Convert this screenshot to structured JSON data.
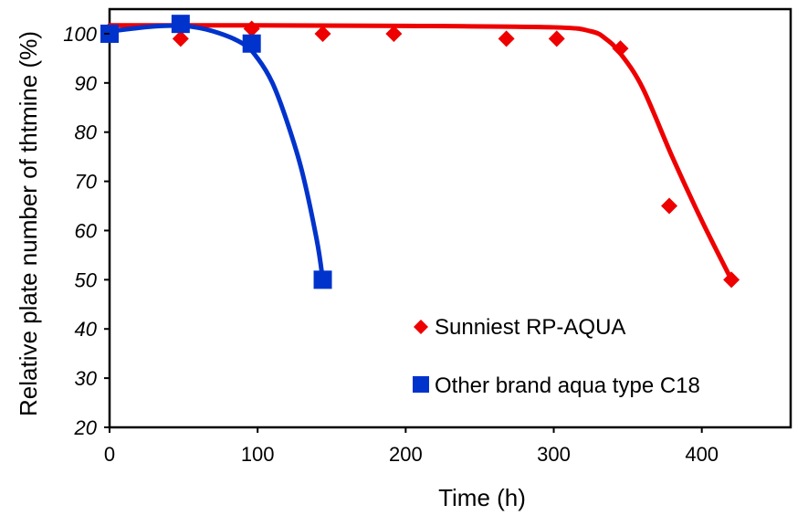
{
  "chart_data": {
    "type": "scatter",
    "title": "",
    "xlabel": "Time (h)",
    "ylabel": "Relative plate number of thtmine (%)",
    "xlim": [
      0,
      460
    ],
    "ylim": [
      20,
      105
    ],
    "xticks": [
      0,
      100,
      200,
      300,
      400
    ],
    "yticks": [
      20,
      30,
      40,
      50,
      60,
      70,
      80,
      90,
      100
    ],
    "grid": false,
    "legend_position": "bottom-right",
    "series": [
      {
        "name": "Sunniest RP-AQUA",
        "marker": "diamond",
        "color": "#ee0000",
        "x": [
          0,
          48,
          96,
          144,
          192,
          268,
          302,
          345,
          378,
          420
        ],
        "y": [
          100,
          99,
          101,
          100,
          100,
          99,
          99,
          97,
          65,
          50
        ],
        "trend_x": [
          0,
          100,
          200,
          300,
          325,
          335,
          345,
          360,
          380,
          400,
          420
        ],
        "trend_y": [
          101.7,
          101.7,
          101.6,
          101.3,
          100.5,
          99,
          96,
          89,
          75,
          62,
          50
        ]
      },
      {
        "name": "Other brand aqua type C18",
        "marker": "square",
        "color": "#0033cc",
        "x": [
          0,
          48,
          96,
          144
        ],
        "y": [
          100,
          102,
          98,
          50
        ],
        "trend_x": [
          0,
          30,
          50,
          70,
          90,
          100,
          110,
          120,
          130,
          140,
          144
        ],
        "trend_y": [
          100.5,
          101.5,
          101.6,
          100.5,
          98,
          95,
          90,
          82,
          72,
          58,
          50
        ]
      }
    ]
  }
}
